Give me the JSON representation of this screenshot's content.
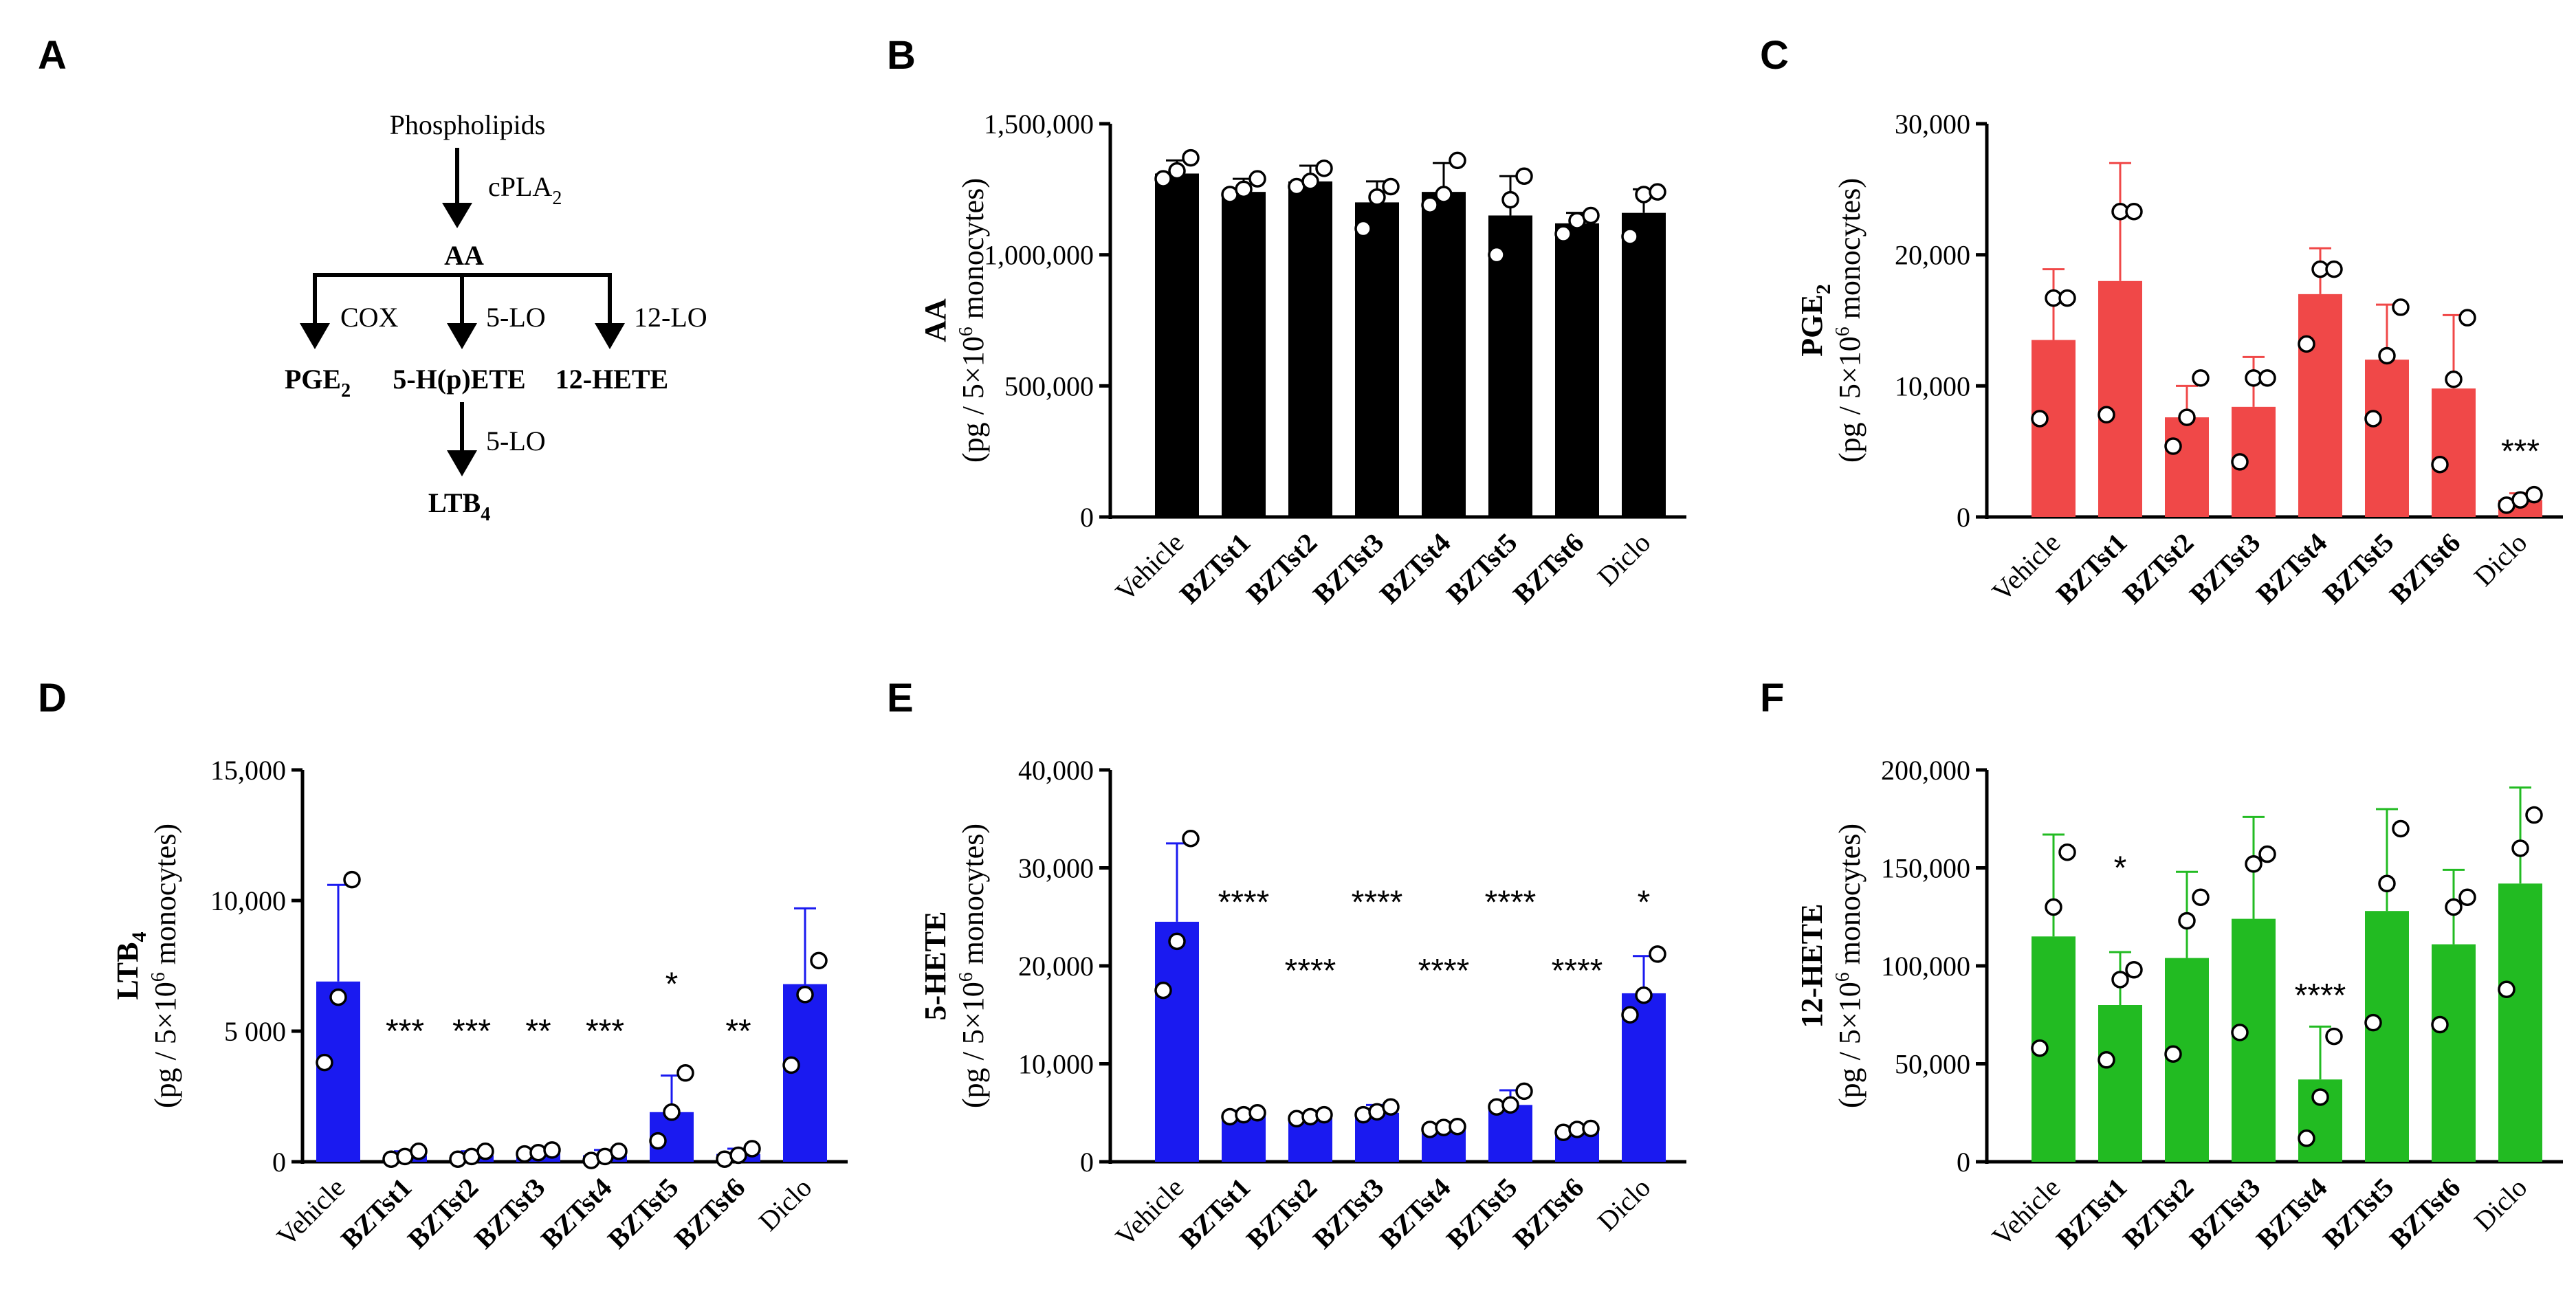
{
  "pathway": {
    "letter": "A",
    "phospholipids": "Phospholipids",
    "cpla2": "cPLA",
    "cpla2_sub": "2",
    "aa": "AA",
    "cox": "COX",
    "lo5_a": "5-LO",
    "lo12": "12-LO",
    "pge2": "PGE",
    "pge2_sub": "2",
    "hpete": "5-H(p)ETE",
    "hete12": "12-HETE",
    "lo5_b": "5-LO",
    "ltb4": "LTB",
    "ltb4_sub": "4",
    "colors": {
      "pge2": "#f04a4a",
      "hpete": "#1a1af0",
      "hete12": "#22b422",
      "ltb4": "#1a1af0"
    }
  },
  "chart_data": [
    {
      "letter": "B",
      "type": "bar",
      "color": "#000000",
      "ylabel_main": "AA",
      "ylabel_sub": "",
      "ylabel_unit": "(pg / 5×10",
      "ylabel_unit_sup": "6",
      "ylabel_unit_end": " monocytes)",
      "ylim": [
        0,
        1500000
      ],
      "yticks": [
        0,
        500000,
        1000000,
        1500000
      ],
      "ytick_labels": [
        "0",
        "500,000",
        "1,000,000",
        "1,500,000"
      ],
      "categories": [
        "Vehicle",
        "BZTst1",
        "BZTst2",
        "BZTst3",
        "BZTst4",
        "BZTst5",
        "BZTst6",
        "Diclo"
      ],
      "bold_categories": [
        false,
        true,
        true,
        true,
        true,
        true,
        true,
        false
      ],
      "values": [
        1310000,
        1240000,
        1280000,
        1200000,
        1240000,
        1150000,
        1120000,
        1160000
      ],
      "errors": [
        50000,
        50000,
        60000,
        80000,
        110000,
        150000,
        40000,
        90000
      ],
      "points": [
        [
          1290000,
          1320000,
          1370000
        ],
        [
          1230000,
          1250000,
          1290000
        ],
        [
          1260000,
          1280000,
          1330000
        ],
        [
          1100000,
          1220000,
          1260000
        ],
        [
          1190000,
          1230000,
          1360000
        ],
        [
          1000000,
          1210000,
          1300000
        ],
        [
          1080000,
          1130000,
          1150000
        ],
        [
          1070000,
          1230000,
          1240000
        ]
      ],
      "significance": [
        "",
        "",
        "",
        "",
        "",
        "",
        "",
        ""
      ]
    },
    {
      "letter": "C",
      "type": "bar",
      "color": "#f04848",
      "ylabel_main": "PGE",
      "ylabel_sub": "2",
      "ylabel_unit": "(pg / 5×10",
      "ylabel_unit_sup": "6",
      "ylabel_unit_end": " monocytes)",
      "ylim": [
        0,
        30000
      ],
      "yticks": [
        0,
        10000,
        20000,
        30000
      ],
      "ytick_labels": [
        "0",
        "10,000",
        "20,000",
        "30,000"
      ],
      "categories": [
        "Vehicle",
        "BZTst1",
        "BZTst2",
        "BZTst3",
        "BZTst4",
        "BZTst5",
        "BZTst6",
        "Diclo"
      ],
      "bold_categories": [
        false,
        true,
        true,
        true,
        true,
        true,
        true,
        false
      ],
      "values": [
        13500,
        18000,
        7600,
        8400,
        17000,
        12000,
        9800,
        1300
      ],
      "errors": [
        5400,
        9000,
        2400,
        3800,
        3500,
        4200,
        5600,
        500
      ],
      "points": [
        [
          7500,
          16700,
          16700
        ],
        [
          7800,
          23300,
          23300
        ],
        [
          5400,
          7600,
          10600
        ],
        [
          4200,
          10600,
          10600
        ],
        [
          13200,
          18900,
          18900
        ],
        [
          7500,
          12300,
          16000
        ],
        [
          4000,
          10500,
          15200
        ],
        [
          900,
          1300,
          1700
        ]
      ],
      "significance": [
        "",
        "",
        "",
        "",
        "",
        "",
        "",
        "***"
      ]
    },
    {
      "letter": "D",
      "type": "bar",
      "color": "#1a1af0",
      "ylabel_main": "LTB",
      "ylabel_sub": "4",
      "ylabel_unit": "(pg / 5×10",
      "ylabel_unit_sup": "6",
      "ylabel_unit_end": " monocytes)",
      "ylim": [
        0,
        15000
      ],
      "yticks": [
        0,
        5000,
        10000,
        15000
      ],
      "ytick_labels": [
        "0",
        "5 000",
        "10,000",
        "15,000"
      ],
      "categories": [
        "Vehicle",
        "BZTst1",
        "BZTst2",
        "BZTst3",
        "BZTst4",
        "BZTst5",
        "BZTst6",
        "Diclo"
      ],
      "bold_categories": [
        false,
        true,
        true,
        true,
        true,
        true,
        true,
        false
      ],
      "values": [
        6900,
        250,
        250,
        400,
        250,
        1900,
        300,
        6800
      ],
      "errors": [
        3700,
        150,
        150,
        100,
        200,
        1400,
        200,
        2900
      ],
      "points": [
        [
          3800,
          6300,
          10800
        ],
        [
          100,
          200,
          400
        ],
        [
          100,
          200,
          400
        ],
        [
          300,
          350,
          450
        ],
        [
          50,
          200,
          400
        ],
        [
          800,
          1900,
          3400
        ],
        [
          100,
          250,
          500
        ],
        [
          3700,
          6400,
          7700
        ]
      ],
      "significance": [
        "",
        "***",
        "***",
        "**",
        "***",
        "*",
        "**",
        ""
      ],
      "sig_values": [
        0,
        5000,
        5000,
        5000,
        5000,
        6800,
        5000,
        0
      ]
    },
    {
      "letter": "E",
      "type": "bar",
      "color": "#1a1af0",
      "ylabel_main": "5-HETE",
      "ylabel_sub": "",
      "ylabel_unit": "(pg / 5×10",
      "ylabel_unit_sup": "6",
      "ylabel_unit_end": " monocytes)",
      "ylim": [
        0,
        40000
      ],
      "yticks": [
        0,
        10000,
        20000,
        30000,
        40000
      ],
      "ytick_labels": [
        "0",
        "10,000",
        "20,000",
        "30,000",
        "40,000"
      ],
      "categories": [
        "Vehicle",
        "BZTst1",
        "BZTst2",
        "BZTst3",
        "BZTst4",
        "BZTst5",
        "BZTst6",
        "Diclo"
      ],
      "bold_categories": [
        false,
        true,
        true,
        true,
        true,
        true,
        true,
        false
      ],
      "values": [
        24500,
        4800,
        4600,
        5000,
        3500,
        5800,
        3200,
        17200
      ],
      "errors": [
        8000,
        400,
        300,
        800,
        300,
        1500,
        400,
        3800
      ],
      "points": [
        [
          17500,
          22500,
          33000
        ],
        [
          4600,
          4800,
          5000
        ],
        [
          4400,
          4600,
          4800
        ],
        [
          4800,
          5100,
          5600
        ],
        [
          3300,
          3500,
          3600
        ],
        [
          5600,
          5800,
          7200
        ],
        [
          3000,
          3300,
          3400
        ],
        [
          15000,
          17000,
          21200
        ]
      ],
      "significance": [
        "",
        "****",
        "****",
        "****",
        "****",
        "****",
        "****",
        "*"
      ],
      "sig_values": [
        0,
        26500,
        19500,
        26500,
        19500,
        26500,
        19500,
        26500
      ]
    },
    {
      "letter": "F",
      "type": "bar",
      "color": "#22bb22",
      "ylabel_main": "12-HETE",
      "ylabel_sub": "",
      "ylabel_unit": "(pg / 5×10",
      "ylabel_unit_sup": "6",
      "ylabel_unit_end": " monocytes)",
      "ylim": [
        0,
        200000
      ],
      "yticks": [
        0,
        50000,
        100000,
        150000,
        200000
      ],
      "ytick_labels": [
        "0",
        "50,000",
        "100,000",
        "150,000",
        "200,000"
      ],
      "categories": [
        "Vehicle",
        "BZTst1",
        "BZTst2",
        "BZTst3",
        "BZTst4",
        "BZTst5",
        "BZTst6",
        "Diclo"
      ],
      "bold_categories": [
        false,
        true,
        true,
        true,
        true,
        true,
        true,
        false
      ],
      "values": [
        115000,
        80000,
        104000,
        124000,
        42000,
        128000,
        111000,
        142000
      ],
      "errors": [
        52000,
        27000,
        44000,
        52000,
        27000,
        52000,
        38000,
        49000
      ],
      "points": [
        [
          58000,
          130000,
          158000
        ],
        [
          52000,
          93000,
          98000
        ],
        [
          55000,
          123000,
          135000
        ],
        [
          66000,
          152000,
          157000
        ],
        [
          12000,
          33000,
          64000
        ],
        [
          71000,
          142000,
          170000
        ],
        [
          70000,
          130000,
          135000
        ],
        [
          88000,
          160000,
          177000
        ]
      ],
      "significance": [
        "",
        "*",
        "",
        "",
        "****",
        "",
        "",
        ""
      ],
      "sig_values": [
        0,
        150000,
        0,
        0,
        85000,
        0,
        0,
        0
      ]
    }
  ]
}
